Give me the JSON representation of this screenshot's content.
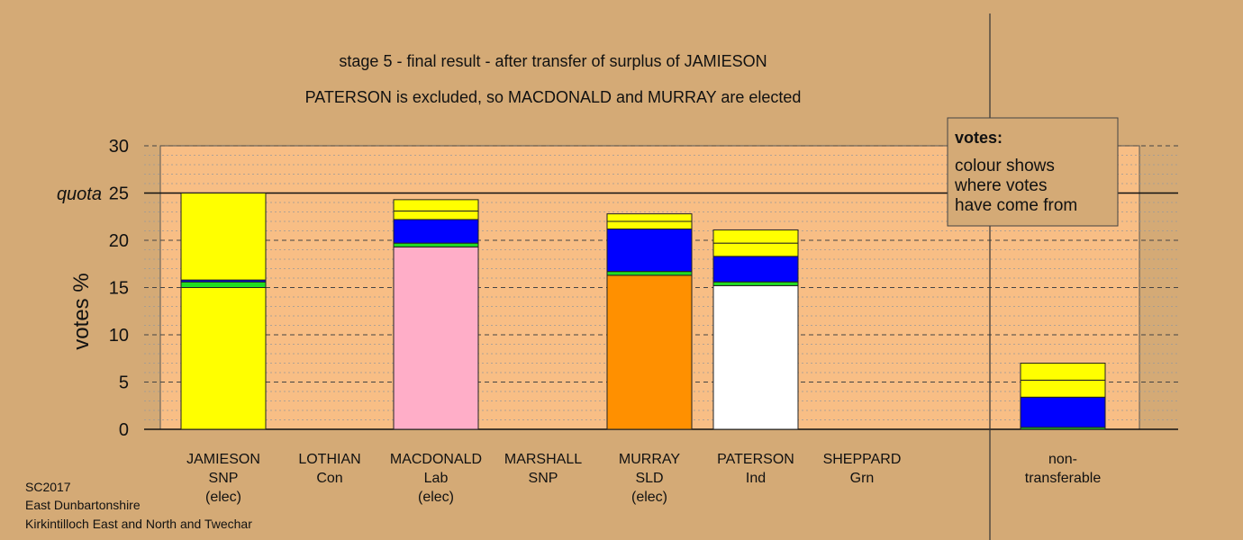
{
  "chart_data": {
    "type": "bar",
    "stacked": true,
    "title": "stage 5 - final result - after transfer of surplus of JAMIESON",
    "subtitle": "PATERSON is excluded, so MACDONALD and MURRAY are elected",
    "ylabel": "votes %",
    "ylim": [
      0,
      30
    ],
    "yticks": [
      0,
      5,
      10,
      15,
      20,
      25,
      30
    ],
    "quota": {
      "value": 25,
      "label": "quota"
    },
    "grid": true,
    "legend": {
      "title": "votes:",
      "lines": [
        "colour shows",
        "where votes",
        "have come from"
      ],
      "placement": "top-right"
    },
    "colors": {
      "bg": "#d4aa76",
      "plot": "#f8be85",
      "SNP": "#ffff00",
      "Lab": "#ffaec8",
      "SLD": "#ff9000",
      "Ind": "#ffffff",
      "Con": "#0000ff",
      "Grn": "#22dd22",
      "stroke": "#222222"
    },
    "categories": [
      {
        "lines": [
          "JAMIESON",
          "SNP",
          "(elec)"
        ],
        "segments": [
          {
            "from": "SNP",
            "value": 15.0
          },
          {
            "from": "Grn",
            "value": 0.6
          },
          {
            "from": "Con",
            "value": 0.2
          },
          {
            "from": "SNP",
            "value": 9.2
          }
        ]
      },
      {
        "lines": [
          "LOTHIAN",
          "Con"
        ],
        "segments": []
      },
      {
        "lines": [
          "MACDONALD",
          "Lab",
          "(elec)"
        ],
        "segments": [
          {
            "from": "Lab",
            "value": 19.3
          },
          {
            "from": "Grn",
            "value": 0.4
          },
          {
            "from": "Con",
            "value": 2.5
          },
          {
            "from": "SNP",
            "value": 0.9
          },
          {
            "from": "SNP",
            "value": 1.2
          }
        ]
      },
      {
        "lines": [
          "MARSHALL",
          "SNP"
        ],
        "segments": []
      },
      {
        "lines": [
          "MURRAY",
          "SLD",
          "(elec)"
        ],
        "segments": [
          {
            "from": "SLD",
            "value": 16.3
          },
          {
            "from": "Grn",
            "value": 0.4
          },
          {
            "from": "Con",
            "value": 4.5
          },
          {
            "from": "SNP",
            "value": 0.8
          },
          {
            "from": "SNP",
            "value": 0.8
          }
        ]
      },
      {
        "lines": [
          "PATERSON",
          "Ind"
        ],
        "segments": [
          {
            "from": "Ind",
            "value": 15.2
          },
          {
            "from": "Grn",
            "value": 0.4
          },
          {
            "from": "Con",
            "value": 2.7
          },
          {
            "from": "SNP",
            "value": 1.4
          },
          {
            "from": "SNP",
            "value": 1.4
          }
        ]
      },
      {
        "lines": [
          "SHEPPARD",
          "Grn"
        ],
        "segments": []
      },
      {
        "lines": [
          "non-",
          "transferable"
        ],
        "segments": [
          {
            "from": "Grn",
            "value": 0.2
          },
          {
            "from": "Con",
            "value": 3.2
          },
          {
            "from": "SNP",
            "value": 1.8
          },
          {
            "from": "SNP",
            "value": 1.8
          }
        ]
      }
    ]
  },
  "footer": {
    "line1": "SC2017",
    "line2": "East Dunbartonshire",
    "line3": "Kirkintilloch East and North and Twechar"
  }
}
